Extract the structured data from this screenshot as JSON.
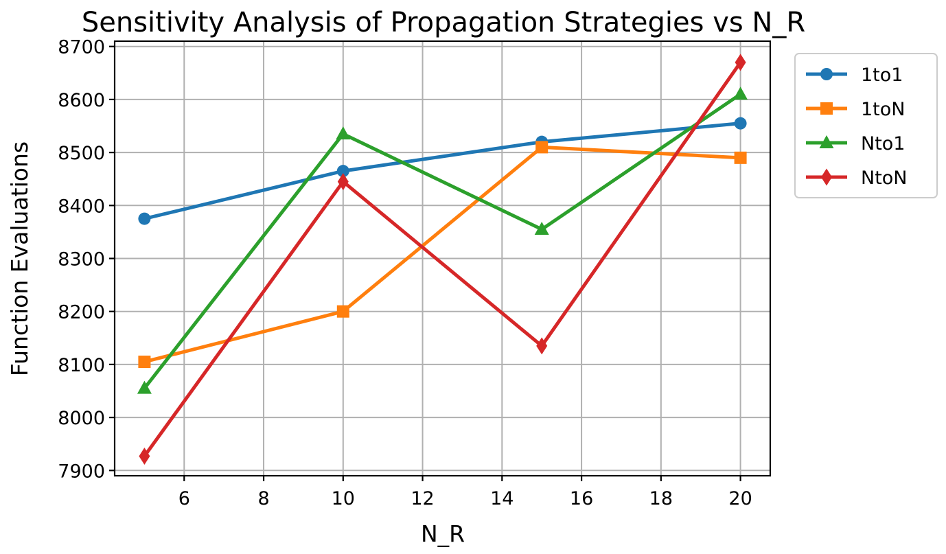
{
  "chart_data": {
    "type": "line",
    "title": "Sensitivity Analysis of Propagation Strategies vs N_R",
    "xlabel": "N_R",
    "ylabel": "Function Evaluations",
    "x": [
      5,
      10,
      15,
      20
    ],
    "xlim": [
      4.25,
      20.75
    ],
    "ylim": [
      7890,
      8710
    ],
    "x_ticks": [
      6,
      8,
      10,
      12,
      14,
      16,
      18,
      20
    ],
    "y_ticks": [
      7900,
      8000,
      8100,
      8200,
      8300,
      8400,
      8500,
      8600,
      8700
    ],
    "grid": true,
    "legend_position": "outside-top-right",
    "series": [
      {
        "name": "1to1",
        "color": "#1f77b4",
        "marker": "circle",
        "values": [
          8375,
          8465,
          8520,
          8555
        ]
      },
      {
        "name": "1toN",
        "color": "#ff7f0e",
        "marker": "square",
        "values": [
          8105,
          8200,
          8510,
          8490
        ]
      },
      {
        "name": "Nto1",
        "color": "#2ca02c",
        "marker": "triangle",
        "values": [
          8055,
          8535,
          8355,
          8610
        ]
      },
      {
        "name": "NtoN",
        "color": "#d62728",
        "marker": "diamond",
        "values": [
          7927,
          8445,
          8135,
          8670
        ]
      }
    ]
  }
}
